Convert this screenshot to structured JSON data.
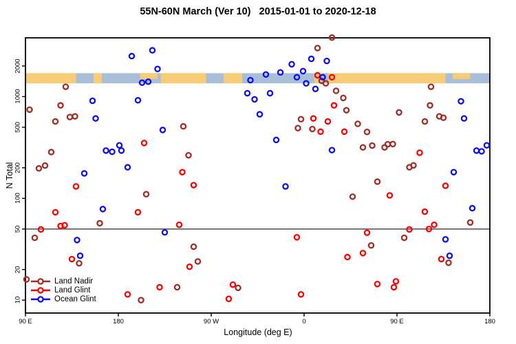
{
  "title": "55N-60N March (Ver 10)   2015-01-01 to 2020-12-18",
  "chart_data": {
    "type": "scatter",
    "title": "55N-60N March (Ver 10)   2015-01-01 to 2020-12-18",
    "xlabel": "Longitude (deg E)",
    "ylabel": "N Total",
    "x_axis": {
      "note": "degrees eastward along axis starting at 90E, wrapping past 180 and 0 back to 180",
      "range": [
        0,
        450
      ],
      "ticks": [
        {
          "pos": 0,
          "label": "90 E"
        },
        {
          "pos": 90,
          "label": "180"
        },
        {
          "pos": 180,
          "label": "90 W"
        },
        {
          "pos": 270,
          "label": "0"
        },
        {
          "pos": 360,
          "label": "90 E"
        },
        {
          "pos": 450,
          "label": "180"
        }
      ]
    },
    "y_axis": {
      "scale": "log10",
      "range": [
        7.47,
        3780
      ],
      "ticks": [
        10,
        20,
        50,
        100,
        200,
        500,
        1000,
        2000
      ]
    },
    "reference_line": {
      "y": 50,
      "color": "#666666"
    },
    "map_band": {
      "y_range": [
        1350,
        1700
      ],
      "land_color": "#F6CC76",
      "ocean_color": "#A9BED9",
      "segments": [
        {
          "from": 0,
          "to": 49,
          "surface": "land",
          "part": "full"
        },
        {
          "from": 49,
          "to": 66,
          "surface": "ocean",
          "part": "full"
        },
        {
          "from": 66,
          "to": 74,
          "surface": "land",
          "part": "full"
        },
        {
          "from": 74,
          "to": 131,
          "surface": "ocean",
          "part": "full"
        },
        {
          "from": 131,
          "to": 175,
          "surface": "land",
          "part": "full"
        },
        {
          "from": 175,
          "to": 192,
          "surface": "ocean",
          "part": "full"
        },
        {
          "from": 192,
          "to": 210,
          "surface": "land",
          "part": "full"
        },
        {
          "from": 210,
          "to": 280,
          "surface": "ocean",
          "part": "full"
        },
        {
          "from": 280,
          "to": 407,
          "surface": "land",
          "part": "full"
        },
        {
          "from": 407,
          "to": 450,
          "surface": "ocean",
          "part": "full"
        },
        {
          "from": 111,
          "to": 128,
          "surface": "land",
          "part": "top"
        },
        {
          "from": 287,
          "to": 293,
          "surface": "ocean",
          "part": "full"
        },
        {
          "from": 414,
          "to": 431,
          "surface": "land",
          "part": "top"
        }
      ]
    },
    "series": [
      {
        "name": "Land Nadir",
        "color": "#A02C25",
        "points": [
          [
            39,
            1250
          ],
          [
            34,
            820
          ],
          [
            4,
            745
          ],
          [
            43,
            630
          ],
          [
            48,
            640
          ],
          [
            29,
            570
          ],
          [
            25,
            285
          ],
          [
            13,
            197
          ],
          [
            19,
            210
          ],
          [
            117,
            110
          ],
          [
            72,
            57
          ],
          [
            9,
            41
          ],
          [
            52,
            23
          ],
          [
            1,
            16
          ],
          [
            112,
            10
          ],
          [
            147,
            13.4
          ],
          [
            153,
            510
          ],
          [
            158,
            265
          ],
          [
            163,
            33.5
          ],
          [
            167,
            24
          ],
          [
            206,
            13.2
          ],
          [
            283,
            3000
          ],
          [
            297,
            3800
          ],
          [
            287,
            1430
          ],
          [
            291,
            1350
          ],
          [
            301,
            1140
          ],
          [
            308,
            970
          ],
          [
            311,
            735
          ],
          [
            322,
            540
          ],
          [
            331,
            450
          ],
          [
            362,
            700
          ],
          [
            393,
            1250
          ],
          [
            392,
            820
          ],
          [
            387,
            570
          ],
          [
            401,
            640
          ],
          [
            405,
            620
          ],
          [
            327,
            317
          ],
          [
            336,
            330
          ],
          [
            348,
            317
          ],
          [
            351,
            340
          ],
          [
            356,
            342
          ],
          [
            372,
            202
          ],
          [
            376,
            211
          ],
          [
            431,
            58
          ],
          [
            367,
            41
          ],
          [
            335,
            34.5
          ],
          [
            410,
            23.3
          ],
          [
            341,
            146
          ],
          [
            317,
            104
          ],
          [
            264,
            490
          ],
          [
            278,
            480
          ],
          [
            267,
            600
          ]
        ]
      },
      {
        "name": "Land Glint",
        "color": "#FF0000",
        "points": [
          [
            115,
            350
          ],
          [
            49,
            131
          ],
          [
            29,
            73
          ],
          [
            109,
            73
          ],
          [
            34,
            53.5
          ],
          [
            38,
            54.5
          ],
          [
            15,
            49.5
          ],
          [
            45,
            25.3
          ],
          [
            99,
            11.4
          ],
          [
            130,
            13.4
          ],
          [
            149,
            55
          ],
          [
            152,
            181
          ],
          [
            163,
            135
          ],
          [
            159,
            21.3
          ],
          [
            201,
            14.2
          ],
          [
            197,
            10.3
          ],
          [
            263,
            41.5
          ],
          [
            267,
            11.4
          ],
          [
            283,
            1620
          ],
          [
            297,
            1550
          ],
          [
            299,
            820
          ],
          [
            309,
            452
          ],
          [
            382,
            281
          ],
          [
            279,
            610
          ],
          [
            293,
            570
          ],
          [
            286,
            452
          ],
          [
            407,
            133
          ],
          [
            353,
            107
          ],
          [
            387,
            74
          ],
          [
            372,
            49.5
          ],
          [
            391,
            50
          ],
          [
            396,
            55
          ],
          [
            331,
            46
          ],
          [
            327,
            29
          ],
          [
            312,
            26.5
          ],
          [
            403,
            25.3
          ],
          [
            341,
            14.4
          ],
          [
            357,
            13.4
          ],
          [
            359,
            15.3
          ]
        ]
      },
      {
        "name": "Ocean Glint",
        "color": "#0D0DEE",
        "points": [
          [
            103,
            2500
          ],
          [
            123,
            2850
          ],
          [
            128,
            1870
          ],
          [
            113,
            1370
          ],
          [
            119,
            1400
          ],
          [
            65,
            910
          ],
          [
            109,
            920
          ],
          [
            68,
            610
          ],
          [
            133,
            470
          ],
          [
            78,
            295
          ],
          [
            84,
            287
          ],
          [
            91,
            332
          ],
          [
            93,
            295
          ],
          [
            99,
            202
          ],
          [
            57,
            176
          ],
          [
            75,
            78.5
          ],
          [
            50,
            39
          ],
          [
            53,
            27.3
          ],
          [
            135,
            46.3
          ],
          [
            218,
            1450
          ],
          [
            215,
            1080
          ],
          [
            237,
            1080
          ],
          [
            222,
            940
          ],
          [
            227,
            670
          ],
          [
            233,
            1650
          ],
          [
            247,
            1730
          ],
          [
            258,
            2080
          ],
          [
            269,
            1780
          ],
          [
            277,
            2350
          ],
          [
            292,
            2240
          ],
          [
            263,
            1550
          ],
          [
            288,
            1550
          ],
          [
            272,
            1350
          ],
          [
            281,
            1190
          ],
          [
            243,
            375
          ],
          [
            252,
            131
          ],
          [
            297,
            298
          ],
          [
            422,
            900
          ],
          [
            425,
            610
          ],
          [
            437,
            295
          ],
          [
            442,
            290
          ],
          [
            447,
            332
          ],
          [
            415,
            181
          ],
          [
            433,
            80
          ],
          [
            407,
            39.6
          ],
          [
            411,
            27.3
          ]
        ]
      }
    ],
    "legend": {
      "position": "bottom-left",
      "entries": [
        "Land Nadir",
        "Land Glint",
        "Ocean Glint"
      ]
    }
  }
}
